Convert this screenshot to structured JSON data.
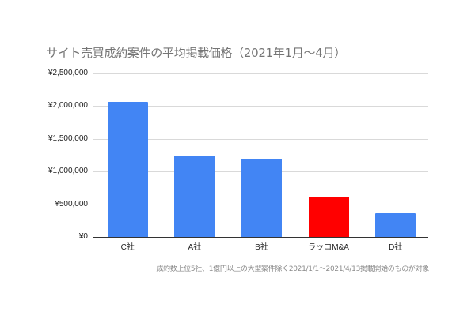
{
  "chart_data": {
    "type": "bar",
    "title": "サイト売買成約案件の平均掲載価格（2021年1月〜4月）",
    "categories": [
      "C社",
      "A社",
      "B社",
      "ラッコM&A",
      "D社"
    ],
    "values": [
      2065000,
      1248000,
      1192000,
      620000,
      359000
    ],
    "colors": [
      "#4285f4",
      "#4285f4",
      "#4285f4",
      "#ff0000",
      "#4285f4"
    ],
    "xlabel": "",
    "ylabel": "",
    "ylim": [
      0,
      2500000
    ],
    "yticks": [
      0,
      500000,
      1000000,
      1500000,
      2000000,
      2500000
    ],
    "ytick_labels": [
      "¥0",
      "¥500,000",
      "¥1,000,000",
      "¥1,500,000",
      "¥2,000,000",
      "¥2,500,000"
    ],
    "grid": true,
    "legend": "none",
    "footnote": "成約数上位5社、1億円以上の大型案件除く2021/1/1〜2021/4/13掲載開始のものが対象"
  }
}
